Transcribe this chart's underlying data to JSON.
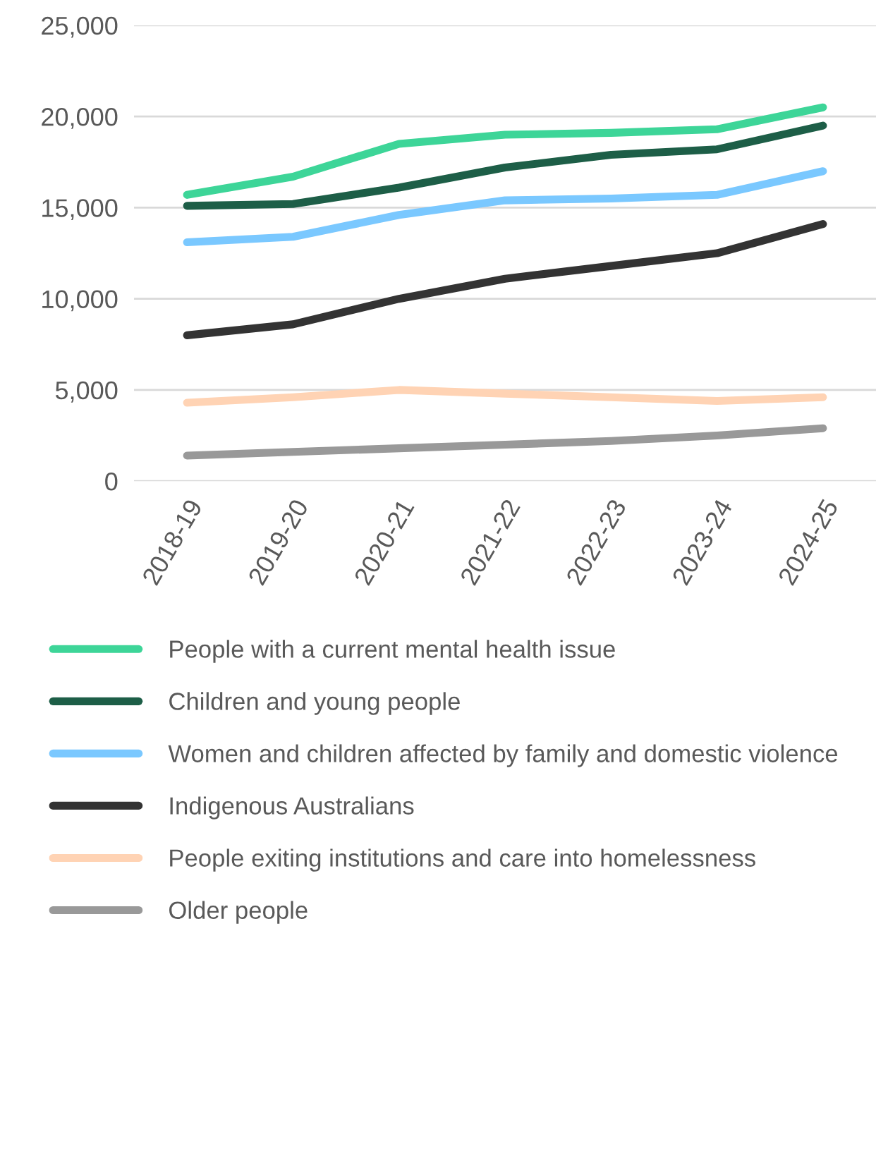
{
  "chart_data": {
    "type": "line",
    "categories": [
      "2018-19",
      "2019-20",
      "2020-21",
      "2021-22",
      "2022-23",
      "2023-24",
      "2024-25"
    ],
    "series": [
      {
        "name": "People with a current mental health issue",
        "color": "#3dd598",
        "values": [
          15700,
          16700,
          18500,
          19000,
          19100,
          19300,
          20500
        ]
      },
      {
        "name": "Children and young people",
        "color": "#1d5e47",
        "values": [
          15100,
          15200,
          16100,
          17200,
          17900,
          18200,
          19500
        ]
      },
      {
        "name": "Women and children affected by family and domestic violence",
        "color": "#7ac8ff",
        "values": [
          13100,
          13400,
          14600,
          15400,
          15500,
          15700,
          17000
        ]
      },
      {
        "name": "Indigenous Australians",
        "color": "#333333",
        "values": [
          8000,
          8600,
          10000,
          11100,
          11800,
          12500,
          14100
        ]
      },
      {
        "name": "People exiting institutions and care into homelessness",
        "color": "#ffd3b4",
        "values": [
          4300,
          4600,
          5000,
          4800,
          4600,
          4400,
          4600
        ]
      },
      {
        "name": "Older people",
        "color": "#999999",
        "values": [
          1400,
          1600,
          1800,
          2000,
          2200,
          2500,
          2900
        ]
      }
    ],
    "ylim": [
      0,
      25000
    ],
    "yticks": [
      {
        "value": 0,
        "label": "0"
      },
      {
        "value": 5000,
        "label": "5,000"
      },
      {
        "value": 10000,
        "label": "10,000"
      },
      {
        "value": 15000,
        "label": "15,000"
      },
      {
        "value": 20000,
        "label": "20,000"
      },
      {
        "value": 25000,
        "label": "25,000"
      }
    ],
    "grid": "y",
    "legend": "bottom",
    "line_style": "solid",
    "marker": "none"
  }
}
